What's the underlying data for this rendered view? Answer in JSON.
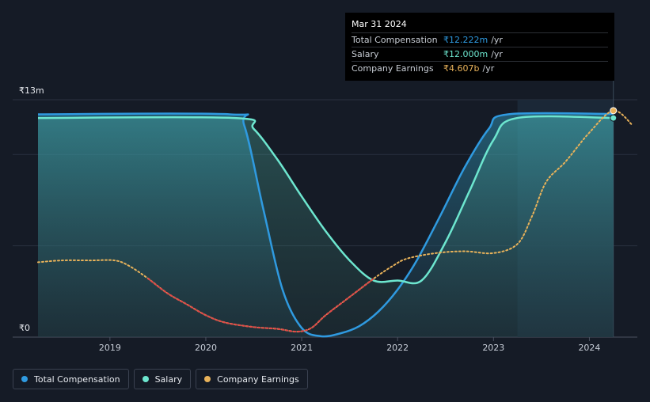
{
  "chart_data": {
    "type": "area",
    "title": "",
    "xlabel": "",
    "ylabel": "",
    "currency_unit": "₹13m",
    "y_top_label": "₹13m",
    "y_bottom_label": "₹0",
    "ylim": [
      0,
      13
    ],
    "xlim": [
      2018.25,
      2024.5
    ],
    "x_ticks": [
      "2019",
      "2020",
      "2021",
      "2022",
      "2023",
      "2024"
    ],
    "x_tick_values": [
      2019,
      2020,
      2021,
      2022,
      2023,
      2024
    ],
    "highlight_range": [
      2023.25,
      2024.25
    ],
    "series": [
      {
        "name": "Total Compensation",
        "color": "#2f9ae0",
        "fill": true,
        "points": [
          [
            2018.25,
            12.2
          ],
          [
            2020.25,
            12.2
          ],
          [
            2020.4,
            11.6
          ],
          [
            2020.6,
            7.0
          ],
          [
            2020.8,
            2.6
          ],
          [
            2021.0,
            0.5
          ],
          [
            2021.2,
            0.05
          ],
          [
            2021.4,
            0.2
          ],
          [
            2021.6,
            0.6
          ],
          [
            2021.8,
            1.4
          ],
          [
            2022.0,
            2.6
          ],
          [
            2022.2,
            4.2
          ],
          [
            2022.45,
            6.7
          ],
          [
            2022.7,
            9.3
          ],
          [
            2022.95,
            11.4
          ],
          [
            2023.15,
            12.2
          ],
          [
            2024.25,
            12.22
          ]
        ]
      },
      {
        "name": "Salary",
        "color": "#6de6cf",
        "fill": true,
        "points": [
          [
            2018.25,
            12.0
          ],
          [
            2020.3,
            12.0
          ],
          [
            2020.5,
            11.4
          ],
          [
            2020.75,
            9.7
          ],
          [
            2021.0,
            7.7
          ],
          [
            2021.25,
            5.8
          ],
          [
            2021.5,
            4.2
          ],
          [
            2021.75,
            3.1
          ],
          [
            2022.0,
            3.1
          ],
          [
            2022.25,
            3.1
          ],
          [
            2022.5,
            5.2
          ],
          [
            2022.75,
            8.0
          ],
          [
            2023.0,
            10.8
          ],
          [
            2023.25,
            12.0
          ],
          [
            2024.25,
            12.0
          ]
        ]
      },
      {
        "name": "Company Earnings",
        "color": "#e8b25a",
        "negative_color": "#e04848",
        "dashed": true,
        "points": [
          [
            2018.25,
            4.1
          ],
          [
            2018.5,
            4.2
          ],
          [
            2018.8,
            4.2
          ],
          [
            2019.05,
            4.2
          ],
          [
            2019.2,
            3.9
          ],
          [
            2019.4,
            3.2
          ],
          [
            2019.6,
            2.4
          ],
          [
            2019.8,
            1.8
          ],
          [
            2020.0,
            1.2
          ],
          [
            2020.2,
            0.8
          ],
          [
            2020.5,
            0.55
          ],
          [
            2020.75,
            0.45
          ],
          [
            2020.95,
            0.3
          ],
          [
            2021.1,
            0.5
          ],
          [
            2021.25,
            1.2
          ],
          [
            2021.5,
            2.2
          ],
          [
            2021.75,
            3.2
          ],
          [
            2021.95,
            3.9
          ],
          [
            2022.1,
            4.3
          ],
          [
            2022.4,
            4.6
          ],
          [
            2022.7,
            4.7
          ],
          [
            2023.0,
            4.6
          ],
          [
            2023.25,
            5.1
          ],
          [
            2023.4,
            6.6
          ],
          [
            2023.55,
            8.5
          ],
          [
            2023.75,
            9.6
          ],
          [
            2024.0,
            11.2
          ],
          [
            2024.25,
            12.4
          ],
          [
            2024.45,
            11.6
          ]
        ]
      }
    ]
  },
  "tooltip": {
    "date": "Mar 31 2024",
    "rows": [
      {
        "label": "Total Compensation",
        "value": "₹12.222m",
        "unit": "/yr",
        "color": "#2f9ae0"
      },
      {
        "label": "Salary",
        "value": "₹12.000m",
        "unit": "/yr",
        "color": "#6de6cf"
      },
      {
        "label": "Company Earnings",
        "value": "₹4.607b",
        "unit": "/yr",
        "color": "#e8b25a"
      }
    ]
  },
  "legend": {
    "items": [
      {
        "label": "Total Compensation",
        "color": "#2f9ae0"
      },
      {
        "label": "Salary",
        "color": "#6de6cf"
      },
      {
        "label": "Company Earnings",
        "color": "#e8b25a"
      }
    ]
  }
}
